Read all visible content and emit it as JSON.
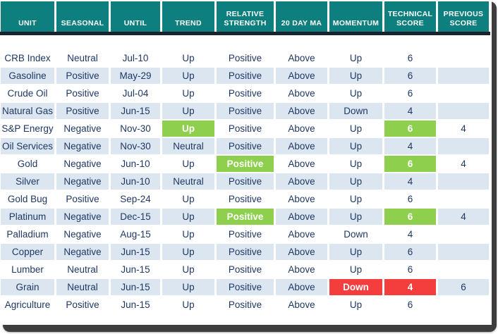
{
  "table": {
    "columns": [
      {
        "key": "unit",
        "label": "UNIT"
      },
      {
        "key": "seasonal",
        "label": "SEASONAL"
      },
      {
        "key": "until",
        "label": "UNTIL"
      },
      {
        "key": "trend",
        "label": "TREND"
      },
      {
        "key": "relative-strength",
        "label": "RELATIVE STRENGTH"
      },
      {
        "key": "20-day-ma",
        "label": "20 DAY MA"
      },
      {
        "key": "momentum",
        "label": "MOMENTUM"
      },
      {
        "key": "technical-score",
        "label": "TECHNICAL SCORE"
      },
      {
        "key": "previous-score",
        "label": "PREVIOUS SCORE"
      }
    ],
    "rows": [
      {
        "cells": [
          "CRB Index",
          "Neutral",
          "Jul-10",
          "Up",
          "Positive",
          "Above",
          "Up",
          "6",
          ""
        ]
      },
      {
        "cells": [
          "Gasoline",
          "Positive",
          "May-29",
          "Up",
          "Positive",
          "Above",
          "Up",
          "6",
          ""
        ]
      },
      {
        "cells": [
          "Crude Oil",
          "Positive",
          "Jul-04",
          "Up",
          "Positive",
          "Above",
          "Up",
          "6",
          ""
        ]
      },
      {
        "cells": [
          "Natural Gas",
          "Positive",
          "Jun-15",
          "Up",
          "Positive",
          "Above",
          "Down",
          "4",
          ""
        ]
      },
      {
        "cells": [
          "S&P Energy",
          "Negative",
          "Nov-30",
          {
            "text": "Up",
            "hl": "green"
          },
          "Positive",
          "Above",
          "Up",
          {
            "text": "6",
            "hl": "green"
          },
          "4"
        ]
      },
      {
        "cells": [
          "Oil Services",
          "Negative",
          "Nov-30",
          "Neutral",
          "Positive",
          "Above",
          "Up",
          "4",
          ""
        ]
      },
      {
        "cells": [
          "Gold",
          "Negative",
          "Jun-10",
          "Up",
          {
            "text": "Positive",
            "hl": "green"
          },
          "Above",
          "Up",
          {
            "text": "6",
            "hl": "green"
          },
          "4"
        ]
      },
      {
        "cells": [
          "Silver",
          "Negative",
          "Jun-10",
          "Neutral",
          "Positive",
          "Above",
          "Up",
          "4",
          ""
        ]
      },
      {
        "cells": [
          "Gold Bug",
          "Positive",
          "Sep-24",
          "Up",
          "Positive",
          "Above",
          "Up",
          "6",
          ""
        ]
      },
      {
        "cells": [
          "Platinum",
          "Negative",
          "Dec-15",
          "Up",
          {
            "text": "Positive",
            "hl": "green"
          },
          "Above",
          "Up",
          {
            "text": "6",
            "hl": "green"
          },
          "4"
        ]
      },
      {
        "cells": [
          "Palladium",
          "Negative",
          "Aug-15",
          "Up",
          "Positive",
          "Above",
          "Down",
          "4",
          ""
        ]
      },
      {
        "cells": [
          "Copper",
          "Negative",
          "Jun-15",
          "Up",
          "Positive",
          "Above",
          "Up",
          "6",
          ""
        ]
      },
      {
        "cells": [
          "Lumber",
          "Neutral",
          "Jun-15",
          "Up",
          "Positive",
          "Above",
          "Up",
          "6",
          ""
        ]
      },
      {
        "cells": [
          "Grain",
          "Neutral",
          "Jun-15",
          "Up",
          "Positive",
          "Above",
          {
            "text": "Down",
            "hl": "red"
          },
          {
            "text": "4",
            "hl": "red"
          },
          "6"
        ]
      },
      {
        "cells": [
          "Agriculture",
          "Positive",
          "Jun-15",
          "Up",
          "Positive",
          "Above",
          "Up",
          "6",
          ""
        ]
      }
    ]
  },
  "colors": {
    "header_bg": "#0e7f7f",
    "header_text": "#ffffff",
    "underline": "#19222d",
    "stripe": "#dce6f1",
    "text": "#1f3864",
    "green": "#8ed04d",
    "red": "#f43e3e",
    "shadow": "#3d3d3d"
  }
}
